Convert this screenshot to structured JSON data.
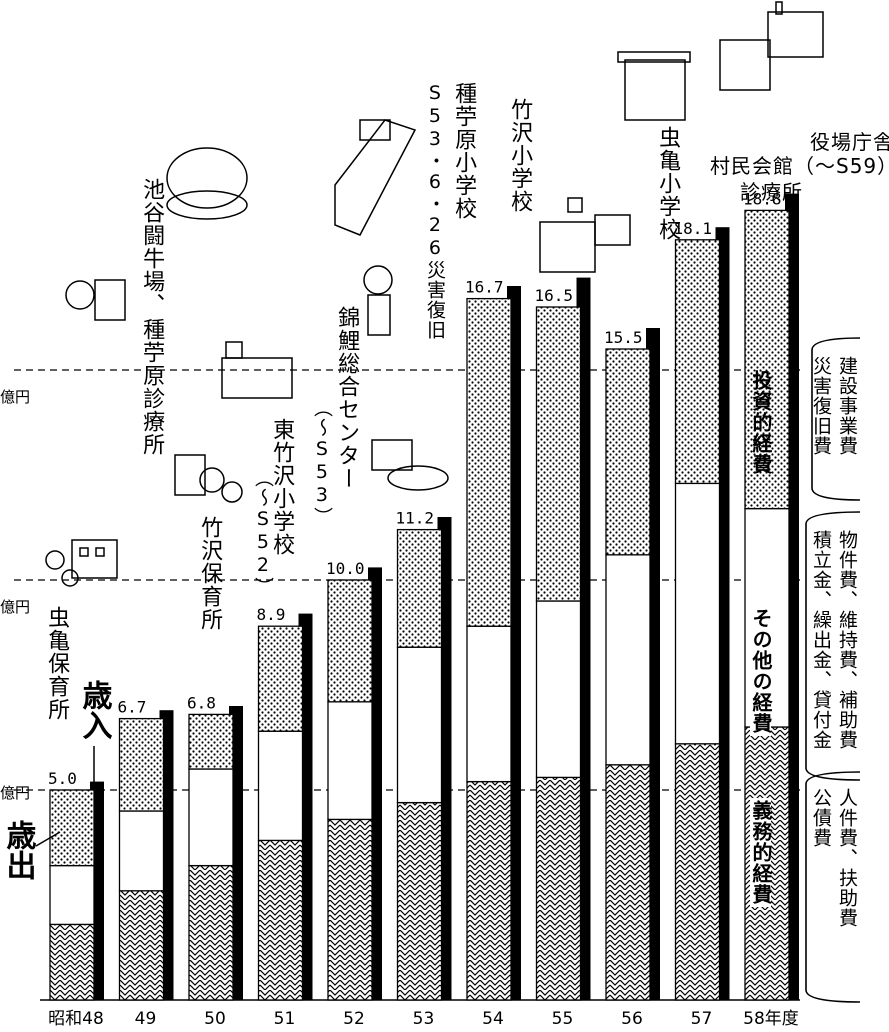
{
  "chart_data": {
    "type": "bar",
    "categories": [
      "昭和48",
      "49",
      "50",
      "51",
      "52",
      "53",
      "54",
      "55",
      "56",
      "57",
      "58年度"
    ],
    "revenue_label": "歳入",
    "expenditure_label": "歳出",
    "totals": [
      5.0,
      6.7,
      6.8,
      8.9,
      10.0,
      11.2,
      16.7,
      16.5,
      15.5,
      18.1,
      18.8
    ],
    "total_labels": [
      "5.0",
      "6.7",
      "6.8",
      "8.9",
      "10.0",
      "11.2",
      "16.7",
      "16.5",
      "15.5",
      "18.1",
      "18.8"
    ],
    "series": [
      {
        "name": "義務的経費",
        "values": [
          1.8,
          2.6,
          3.2,
          3.8,
          4.3,
          4.7,
          5.2,
          5.3,
          5.6,
          6.1,
          6.5
        ]
      },
      {
        "name": "その他の経費",
        "values": [
          1.4,
          1.9,
          2.3,
          2.6,
          2.8,
          3.7,
          3.7,
          4.2,
          5.0,
          6.2,
          5.2
        ]
      },
      {
        "name": "投資的経費",
        "values": [
          1.8,
          2.2,
          1.3,
          2.5,
          2.9,
          2.8,
          7.8,
          7.0,
          4.9,
          5.8,
          7.1
        ]
      }
    ],
    "revenue_values": [
      5.2,
      6.9,
      7.0,
      9.2,
      10.3,
      11.5,
      17.0,
      17.2,
      16.0,
      18.4,
      19.2
    ],
    "gridlines": [
      5,
      10,
      15
    ],
    "gridline_label_suffix": "億円",
    "legend": {
      "investment": {
        "label": "投資的経費",
        "detail_line1": "建設事業費",
        "detail_line2": "災害復旧費"
      },
      "other": {
        "label": "その他の経費",
        "detail_line1": "物件費、維持費、補助費",
        "detail_line2": "積立金、繰出金、貸付金"
      },
      "mandatory": {
        "label": "義務的経費",
        "detail_line1": "人件費、扶助費",
        "detail_line2": "公債費"
      }
    },
    "ylim": [
      0,
      20
    ],
    "annotations": [
      {
        "text": "虫亀保育所"
      },
      {
        "text": "池谷闘牛場、"
      },
      {
        "text": "種苧原診療所"
      },
      {
        "text": "竹沢保育所"
      },
      {
        "text": "東竹沢小学校"
      },
      {
        "text": "（〜S52）"
      },
      {
        "text": "錦鯉総合センター"
      },
      {
        "text": "（〜S53）"
      },
      {
        "text": "種苧原小学校"
      },
      {
        "text": "S53・6・26災害復旧"
      },
      {
        "text": "竹沢小学校"
      },
      {
        "text": "虫亀小学校"
      },
      {
        "text": "役場庁舎"
      },
      {
        "text": "村民会館（〜S59）"
      },
      {
        "text": "診療所"
      }
    ]
  }
}
